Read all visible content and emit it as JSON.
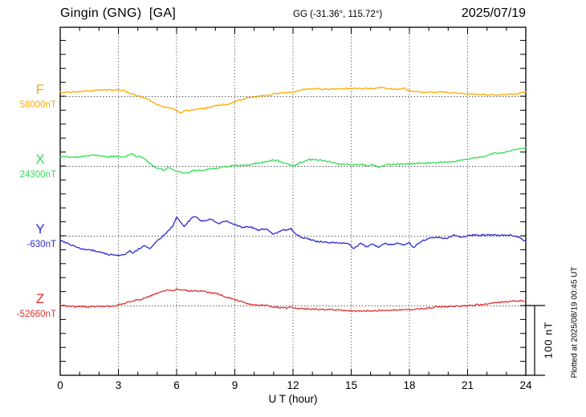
{
  "header": {
    "station": "Gingin (GNG)  [GA]",
    "coordinates": "GG (-31.36°, 115.72°)",
    "date": "2025/07/19"
  },
  "x_axis": {
    "label": "U T (hour)",
    "ticks": [
      0,
      3,
      6,
      9,
      12,
      15,
      18,
      21,
      24
    ],
    "minor_step_hours": 1,
    "range_hours": [
      0,
      24
    ]
  },
  "scale_bar": {
    "label": "100 nT",
    "value_nT": 100
  },
  "footer_note": "Plotted at 2025/08/19 00:45 UT",
  "chart_data": {
    "type": "line",
    "title": "Gingin (GNG) [GA] magnetogram, 2025/07/19",
    "xlabel": "U T (hour)",
    "x_range": [
      0,
      24
    ],
    "grid_hours": [
      3,
      6,
      9,
      12,
      15,
      18,
      21
    ],
    "nT_per_tick": 20,
    "legend_position": "left",
    "series": [
      {
        "name": "F",
        "baseline_label": "58000nT",
        "baseline_nT": 58000,
        "color": "#FFAA00",
        "points_hour_dnT": [
          [
            0,
            5
          ],
          [
            0.4,
            6
          ],
          [
            1.2,
            7
          ],
          [
            2.1,
            9
          ],
          [
            2.9,
            9
          ],
          [
            3.3,
            8
          ],
          [
            3.5,
            5
          ],
          [
            3.7,
            3
          ],
          [
            4.2,
            -1
          ],
          [
            4.6,
            -5
          ],
          [
            4.8,
            -9
          ],
          [
            5.0,
            -12
          ],
          [
            5.2,
            -14
          ],
          [
            5.4,
            -16
          ],
          [
            5.8,
            -18
          ],
          [
            6.0,
            -21
          ],
          [
            6.2,
            -24
          ],
          [
            6.4,
            -21
          ],
          [
            6.9,
            -19
          ],
          [
            7.3,
            -18
          ],
          [
            7.7,
            -16
          ],
          [
            8.1,
            -13
          ],
          [
            8.5,
            -12
          ],
          [
            8.9,
            -9
          ],
          [
            9.3,
            -5
          ],
          [
            9.7,
            -2
          ],
          [
            10.1,
            -1
          ],
          [
            10.6,
            1
          ],
          [
            11.0,
            3
          ],
          [
            11.4,
            5
          ],
          [
            12.0,
            6
          ],
          [
            12.4,
            9
          ],
          [
            12.8,
            11
          ],
          [
            13.7,
            10
          ],
          [
            14.5,
            11
          ],
          [
            15.3,
            11
          ],
          [
            16.1,
            11
          ],
          [
            16.5,
            12
          ],
          [
            17.4,
            10
          ],
          [
            17.8,
            11
          ],
          [
            18.0,
            8
          ],
          [
            18.6,
            6
          ],
          [
            19.4,
            6
          ],
          [
            20.3,
            5
          ],
          [
            21.1,
            3
          ],
          [
            21.9,
            2
          ],
          [
            22.8,
            2
          ],
          [
            23.6,
            3
          ],
          [
            24,
            6
          ]
        ]
      },
      {
        "name": "X",
        "baseline_label": "24300nT",
        "baseline_nT": 24300,
        "color": "#33DD55",
        "points_hour_dnT": [
          [
            0,
            13
          ],
          [
            0.4,
            13
          ],
          [
            0.8,
            12
          ],
          [
            1.2,
            14
          ],
          [
            1.7,
            16
          ],
          [
            2.1,
            14
          ],
          [
            2.5,
            13
          ],
          [
            2.9,
            14
          ],
          [
            3.3,
            13
          ],
          [
            3.5,
            16
          ],
          [
            3.7,
            17
          ],
          [
            3.9,
            14
          ],
          [
            4.2,
            13
          ],
          [
            4.4,
            10
          ],
          [
            4.6,
            4
          ],
          [
            4.8,
            0
          ],
          [
            5.0,
            -3
          ],
          [
            5.4,
            -6
          ],
          [
            5.6,
            -2
          ],
          [
            5.8,
            -6
          ],
          [
            6.2,
            -8
          ],
          [
            6.4,
            -11
          ],
          [
            6.6,
            -10
          ],
          [
            6.9,
            -6
          ],
          [
            7.3,
            -6
          ],
          [
            7.7,
            -4
          ],
          [
            8.1,
            -3
          ],
          [
            8.5,
            -1
          ],
          [
            8.9,
            0
          ],
          [
            9.3,
            1
          ],
          [
            9.7,
            1
          ],
          [
            10.1,
            4
          ],
          [
            10.6,
            6
          ],
          [
            11.0,
            9
          ],
          [
            11.4,
            6
          ],
          [
            11.8,
            2
          ],
          [
            12.0,
            0
          ],
          [
            12.4,
            5
          ],
          [
            12.8,
            9
          ],
          [
            13.2,
            9
          ],
          [
            13.5,
            8
          ],
          [
            13.9,
            6
          ],
          [
            14.3,
            3
          ],
          [
            15.0,
            2
          ],
          [
            15.7,
            2
          ],
          [
            15.9,
            -1
          ],
          [
            16.1,
            3
          ],
          [
            16.4,
            -2
          ],
          [
            16.7,
            2
          ],
          [
            17.0,
            2
          ],
          [
            17.8,
            3
          ],
          [
            18.6,
            4
          ],
          [
            19.4,
            5
          ],
          [
            19.9,
            6
          ],
          [
            20.3,
            6
          ],
          [
            20.7,
            9
          ],
          [
            21.1,
            10
          ],
          [
            21.5,
            12
          ],
          [
            21.9,
            14
          ],
          [
            22.3,
            18
          ],
          [
            22.8,
            19
          ],
          [
            23.2,
            22
          ],
          [
            23.6,
            24
          ],
          [
            24,
            26
          ]
        ]
      },
      {
        "name": "Y",
        "baseline_label": "-630nT",
        "baseline_nT": -630,
        "color": "#2B2BD5",
        "points_hour_dnT": [
          [
            0,
            -6
          ],
          [
            0.4,
            -11
          ],
          [
            0.8,
            -16
          ],
          [
            1.2,
            -19
          ],
          [
            1.7,
            -21
          ],
          [
            2.1,
            -24
          ],
          [
            2.5,
            -27
          ],
          [
            2.9,
            -28
          ],
          [
            3.3,
            -28
          ],
          [
            3.6,
            -21
          ],
          [
            3.7,
            -25
          ],
          [
            4.1,
            -18
          ],
          [
            4.4,
            -14
          ],
          [
            4.6,
            -19
          ],
          [
            5.0,
            -8
          ],
          [
            5.4,
            3
          ],
          [
            5.6,
            8
          ],
          [
            5.8,
            14
          ],
          [
            6.0,
            27
          ],
          [
            6.2,
            19
          ],
          [
            6.4,
            13
          ],
          [
            6.6,
            20
          ],
          [
            6.9,
            28
          ],
          [
            7.3,
            21
          ],
          [
            7.7,
            24
          ],
          [
            8.2,
            18
          ],
          [
            8.6,
            21
          ],
          [
            9.0,
            16
          ],
          [
            9.4,
            12
          ],
          [
            9.8,
            13
          ],
          [
            10.2,
            8
          ],
          [
            10.6,
            10
          ],
          [
            11.0,
            2
          ],
          [
            11.5,
            8
          ],
          [
            11.9,
            10
          ],
          [
            12.0,
            6
          ],
          [
            12.4,
            -2
          ],
          [
            12.8,
            -5
          ],
          [
            13.2,
            -8
          ],
          [
            14.1,
            -10
          ],
          [
            14.9,
            -11
          ],
          [
            15.1,
            -18
          ],
          [
            15.5,
            -11
          ],
          [
            15.8,
            -16
          ],
          [
            16.1,
            -11
          ],
          [
            16.4,
            -17
          ],
          [
            16.7,
            -11
          ],
          [
            17.0,
            -13
          ],
          [
            17.4,
            -11
          ],
          [
            17.8,
            -13
          ],
          [
            18.0,
            -10
          ],
          [
            18.2,
            -17
          ],
          [
            18.6,
            -8
          ],
          [
            19.0,
            -4
          ],
          [
            19.4,
            -2
          ],
          [
            19.9,
            -4
          ],
          [
            20.3,
            1
          ],
          [
            20.7,
            -2
          ],
          [
            21.1,
            1
          ],
          [
            21.5,
            1
          ],
          [
            21.9,
            1
          ],
          [
            22.3,
            1
          ],
          [
            22.8,
            1
          ],
          [
            23.2,
            1
          ],
          [
            23.6,
            -2
          ],
          [
            24,
            -8
          ]
        ]
      },
      {
        "name": "Z",
        "baseline_label": "-52660nT",
        "baseline_nT": -52660,
        "color": "#E03030",
        "points_hour_dnT": [
          [
            0,
            0
          ],
          [
            0.5,
            -1
          ],
          [
            1.0,
            -2
          ],
          [
            1.5,
            -2
          ],
          [
            2.0,
            -1
          ],
          [
            2.5,
            -1
          ],
          [
            2.9,
            0
          ],
          [
            3.3,
            3
          ],
          [
            3.7,
            6
          ],
          [
            4.2,
            9
          ],
          [
            4.6,
            13
          ],
          [
            5.0,
            18
          ],
          [
            5.4,
            21
          ],
          [
            5.6,
            23
          ],
          [
            5.8,
            21
          ],
          [
            6.0,
            24
          ],
          [
            6.4,
            22
          ],
          [
            6.8,
            21
          ],
          [
            7.3,
            21
          ],
          [
            7.7,
            18
          ],
          [
            8.1,
            17
          ],
          [
            8.5,
            13
          ],
          [
            8.9,
            9
          ],
          [
            9.3,
            6
          ],
          [
            9.7,
            2
          ],
          [
            10.1,
            1
          ],
          [
            10.6,
            0
          ],
          [
            11.0,
            -2
          ],
          [
            11.4,
            -3
          ],
          [
            12.0,
            -3
          ],
          [
            12.8,
            -5
          ],
          [
            14.1,
            -6
          ],
          [
            15.3,
            -8
          ],
          [
            16.5,
            -7
          ],
          [
            17.8,
            -6
          ],
          [
            18.6,
            -5
          ],
          [
            19.4,
            -2
          ],
          [
            20.3,
            -1
          ],
          [
            21.1,
            0
          ],
          [
            21.5,
            1
          ],
          [
            21.9,
            2
          ],
          [
            22.8,
            5
          ],
          [
            23.2,
            6
          ],
          [
            23.6,
            7
          ],
          [
            24,
            7
          ]
        ]
      }
    ]
  }
}
